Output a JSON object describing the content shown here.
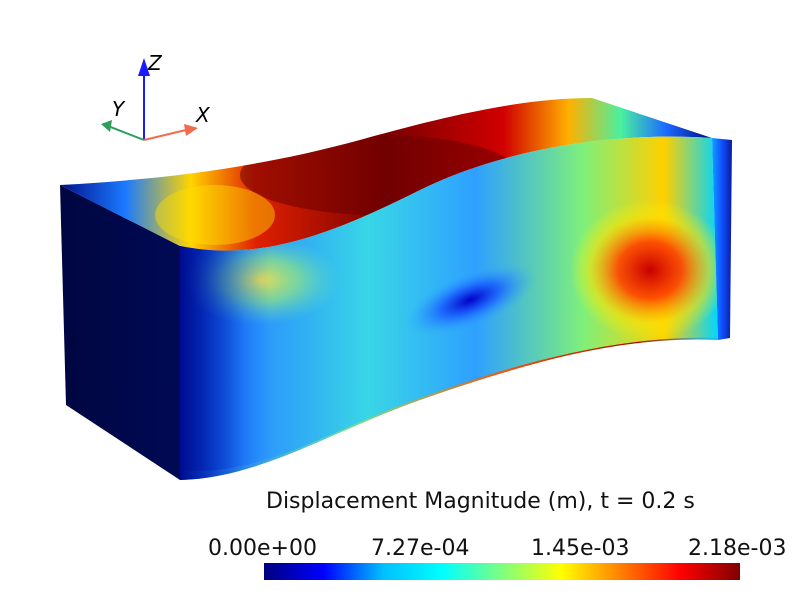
{
  "viewer": {
    "axes": {
      "x_label": "X",
      "y_label": "Y",
      "z_label": "Z",
      "x_color": "#f26b4f",
      "y_color": "#2e9e5c",
      "z_color": "#1a1aff"
    },
    "object": "deformed beam (box) colored by displacement magnitude",
    "colormap": "jet"
  },
  "colorbar": {
    "title": "Displacement Magnitude (m), t = 0.2 s",
    "ticks": [
      "0.00e+00",
      "7.27e-04",
      "1.45e-03",
      "2.18e-03"
    ],
    "range": [
      0,
      0.00218
    ],
    "stops": [
      "#00007f",
      "#0000ff",
      "#00bfff",
      "#00ffff",
      "#7fff7f",
      "#ffff00",
      "#ff7f00",
      "#ff0000",
      "#7f0000"
    ]
  }
}
